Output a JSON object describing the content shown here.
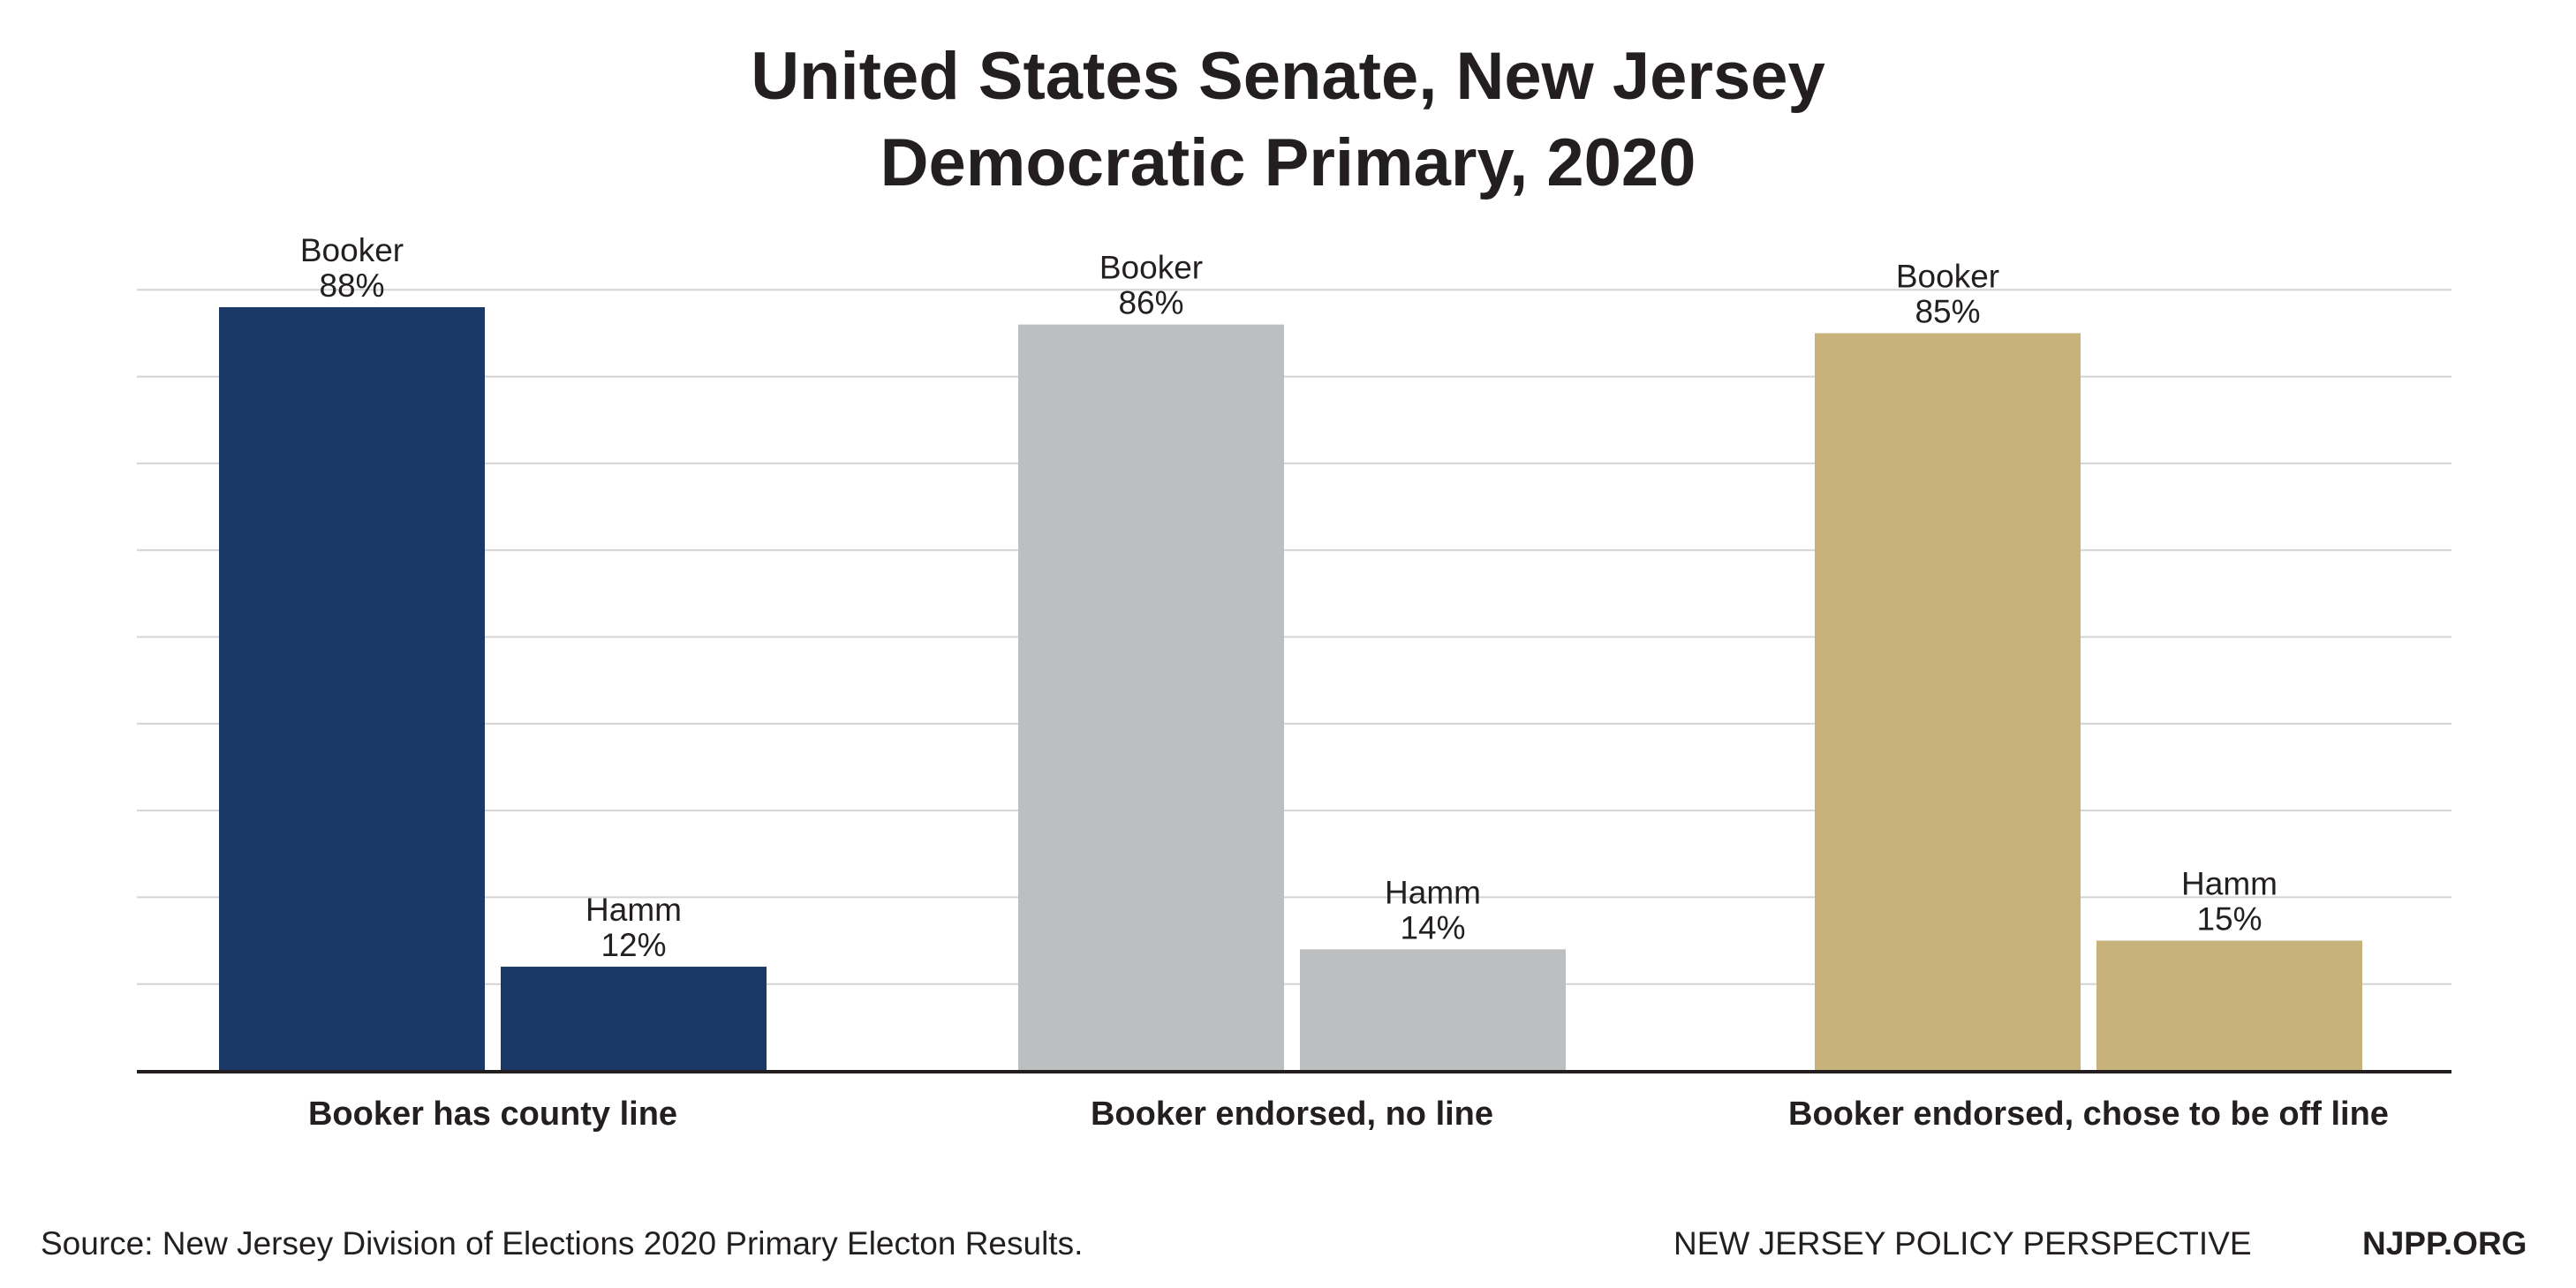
{
  "chart_data": {
    "type": "bar",
    "title_lines": [
      "United States Senate, New Jersey",
      "Democratic Primary, 2020"
    ],
    "categories": [
      "Booker has county line",
      "Booker endorsed, no line",
      "Booker endorsed, chose to be off line"
    ],
    "series": [
      {
        "name": "Booker",
        "values": [
          88,
          86,
          85
        ]
      },
      {
        "name": "Hamm",
        "values": [
          12,
          14,
          15
        ]
      }
    ],
    "data_labels": [
      [
        {
          "name": "Booker",
          "value": "88%"
        },
        {
          "name": "Hamm",
          "value": "12%"
        }
      ],
      [
        {
          "name": "Booker",
          "value": "86%"
        },
        {
          "name": "Hamm",
          "value": "14%"
        }
      ],
      [
        {
          "name": "Booker",
          "value": "85%"
        },
        {
          "name": "Hamm",
          "value": "15%"
        }
      ]
    ],
    "category_colors": [
      "#1b3967",
      "#bdbec0",
      "#c8b27b"
    ],
    "ylim": [
      0,
      90
    ],
    "grid": true,
    "grid_step": 10,
    "xlabel": "",
    "ylabel": ""
  },
  "footer": {
    "source": "Source: New Jersey Division of Elections 2020 Primary Electon Results.",
    "org": "NEW JERSEY POLICY PERSPECTIVE",
    "site": "NJPP.ORG"
  }
}
